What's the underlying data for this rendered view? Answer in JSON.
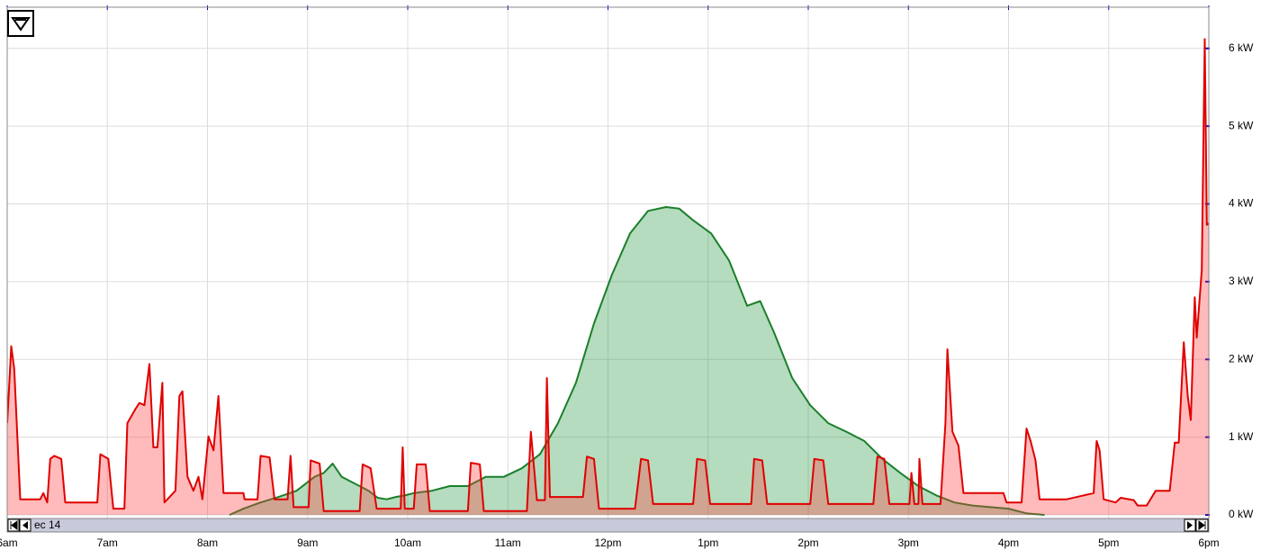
{
  "chart_data": {
    "type": "area",
    "date_label": "ec 14",
    "xlim": [
      6,
      18
    ],
    "xticks": [
      {
        "value": 6,
        "label": "6am"
      },
      {
        "value": 7,
        "label": "7am"
      },
      {
        "value": 8,
        "label": "8am"
      },
      {
        "value": 9,
        "label": "9am"
      },
      {
        "value": 10,
        "label": "10am"
      },
      {
        "value": 11,
        "label": "11am"
      },
      {
        "value": 12,
        "label": "12pm"
      },
      {
        "value": 13,
        "label": "1pm"
      },
      {
        "value": 14,
        "label": "2pm"
      },
      {
        "value": 15,
        "label": "3pm"
      },
      {
        "value": 16,
        "label": "4pm"
      },
      {
        "value": 17,
        "label": "5pm"
      },
      {
        "value": 18,
        "label": "6pm"
      }
    ],
    "ylim": [
      0,
      6.53
    ],
    "yticks": [
      {
        "value": 0,
        "label": "0 kW"
      },
      {
        "value": 1,
        "label": "1 kW"
      },
      {
        "value": 2,
        "label": "2 kW"
      },
      {
        "value": 3,
        "label": "3 kW"
      },
      {
        "value": 4,
        "label": "4 kW"
      },
      {
        "value": 5,
        "label": "5 kW"
      },
      {
        "value": 6,
        "label": "6 kW"
      }
    ],
    "grid": true,
    "series": [
      {
        "color": "#1a7f2a",
        "fill": "rgba(30,150,60,0.33)",
        "x": [
          8.22,
          8.36,
          8.53,
          8.71,
          8.89,
          9.07,
          9.16,
          9.25,
          9.34,
          9.43,
          9.52,
          9.61,
          9.7,
          9.79,
          9.88,
          9.97,
          10.06,
          10.24,
          10.42,
          10.6,
          10.78,
          10.96,
          11.14,
          11.32,
          11.5,
          11.68,
          11.86,
          12.04,
          12.22,
          12.4,
          12.58,
          12.71,
          12.85,
          13.03,
          13.21,
          13.39,
          13.52,
          13.66,
          13.84,
          14.02,
          14.2,
          14.38,
          14.56,
          14.74,
          14.92,
          15.1,
          15.28,
          15.46,
          15.64,
          15.82,
          16.0,
          16.18,
          16.36
        ],
        "values": [
          0,
          0.08,
          0.16,
          0.23,
          0.31,
          0.49,
          0.54,
          0.66,
          0.49,
          0.43,
          0.37,
          0.31,
          0.22,
          0.2,
          0.23,
          0.25,
          0.28,
          0.31,
          0.37,
          0.37,
          0.49,
          0.49,
          0.6,
          0.78,
          1.18,
          1.7,
          2.46,
          3.09,
          3.62,
          3.91,
          3.96,
          3.94,
          3.79,
          3.62,
          3.27,
          2.69,
          2.75,
          2.34,
          1.76,
          1.41,
          1.18,
          1.07,
          0.95,
          0.72,
          0.54,
          0.37,
          0.25,
          0.16,
          0.12,
          0.1,
          0.08,
          0.02,
          0
        ]
      },
      {
        "color": "#e00000",
        "fill": "rgba(255,60,60,0.35)",
        "x": [
          6.0,
          6.04,
          6.07,
          6.13,
          6.33,
          6.36,
          6.4,
          6.43,
          6.47,
          6.54,
          6.58,
          6.9,
          6.93,
          7.01,
          7.06,
          7.17,
          7.2,
          7.28,
          7.32,
          7.37,
          7.42,
          7.46,
          7.5,
          7.55,
          7.57,
          7.68,
          7.72,
          7.75,
          7.8,
          7.86,
          7.91,
          7.95,
          8.01,
          8.06,
          8.11,
          8.16,
          8.36,
          8.37,
          8.5,
          8.53,
          8.62,
          8.67,
          8.8,
          8.83,
          8.86,
          9.01,
          9.03,
          9.12,
          9.16,
          9.52,
          9.55,
          9.63,
          9.69,
          9.93,
          9.95,
          9.97,
          10.06,
          10.09,
          10.18,
          10.22,
          10.6,
          10.63,
          10.72,
          10.76,
          11.19,
          11.23,
          11.29,
          11.37,
          11.39,
          11.42,
          11.75,
          11.79,
          11.86,
          11.91,
          12.27,
          12.33,
          12.4,
          12.45,
          12.85,
          12.89,
          12.97,
          13.02,
          13.43,
          13.46,
          13.54,
          13.59,
          14.02,
          14.06,
          14.15,
          14.2,
          14.65,
          14.69,
          14.76,
          14.81,
          15.01,
          15.03,
          15.06,
          15.1,
          15.11,
          15.14,
          15.32,
          15.37,
          15.39,
          15.44,
          15.5,
          15.55,
          15.95,
          15.98,
          16.13,
          16.18,
          16.22,
          16.27,
          16.31,
          16.58,
          16.85,
          16.88,
          16.91,
          16.95,
          17.07,
          17.12,
          17.25,
          17.29,
          17.38,
          17.47,
          17.61,
          17.66,
          17.7,
          17.75,
          17.79,
          17.82,
          17.86,
          17.88,
          17.93,
          17.96,
          17.98,
          18.0
        ],
        "values": [
          1.18,
          2.17,
          1.88,
          0.2,
          0.2,
          0.28,
          0.16,
          0.72,
          0.76,
          0.72,
          0.16,
          0.16,
          0.78,
          0.72,
          0.08,
          0.08,
          1.18,
          1.36,
          1.44,
          1.41,
          1.94,
          0.87,
          0.87,
          1.7,
          0.16,
          0.31,
          1.53,
          1.59,
          0.49,
          0.31,
          0.49,
          0.2,
          1.01,
          0.83,
          1.53,
          0.28,
          0.28,
          0.2,
          0.2,
          0.76,
          0.74,
          0.2,
          0.2,
          0.76,
          0.1,
          0.1,
          0.7,
          0.66,
          0.05,
          0.05,
          0.65,
          0.6,
          0.08,
          0.08,
          0.87,
          0.08,
          0.08,
          0.65,
          0.65,
          0.05,
          0.05,
          0.67,
          0.65,
          0.05,
          0.05,
          1.07,
          0.19,
          0.19,
          1.76,
          0.23,
          0.23,
          0.75,
          0.72,
          0.08,
          0.08,
          0.72,
          0.7,
          0.14,
          0.14,
          0.72,
          0.7,
          0.14,
          0.14,
          0.72,
          0.7,
          0.14,
          0.14,
          0.72,
          0.7,
          0.14,
          0.14,
          0.75,
          0.72,
          0.14,
          0.14,
          0.54,
          0.14,
          0.14,
          0.72,
          0.14,
          0.14,
          1.18,
          2.13,
          1.07,
          0.89,
          0.28,
          0.28,
          0.16,
          0.16,
          1.11,
          0.95,
          0.7,
          0.2,
          0.2,
          0.28,
          0.95,
          0.83,
          0.2,
          0.16,
          0.22,
          0.19,
          0.12,
          0.12,
          0.31,
          0.31,
          0.93,
          0.93,
          2.22,
          1.53,
          1.22,
          2.8,
          2.28,
          3.15,
          6.12,
          3.73,
          3.75
        ]
      }
    ]
  }
}
